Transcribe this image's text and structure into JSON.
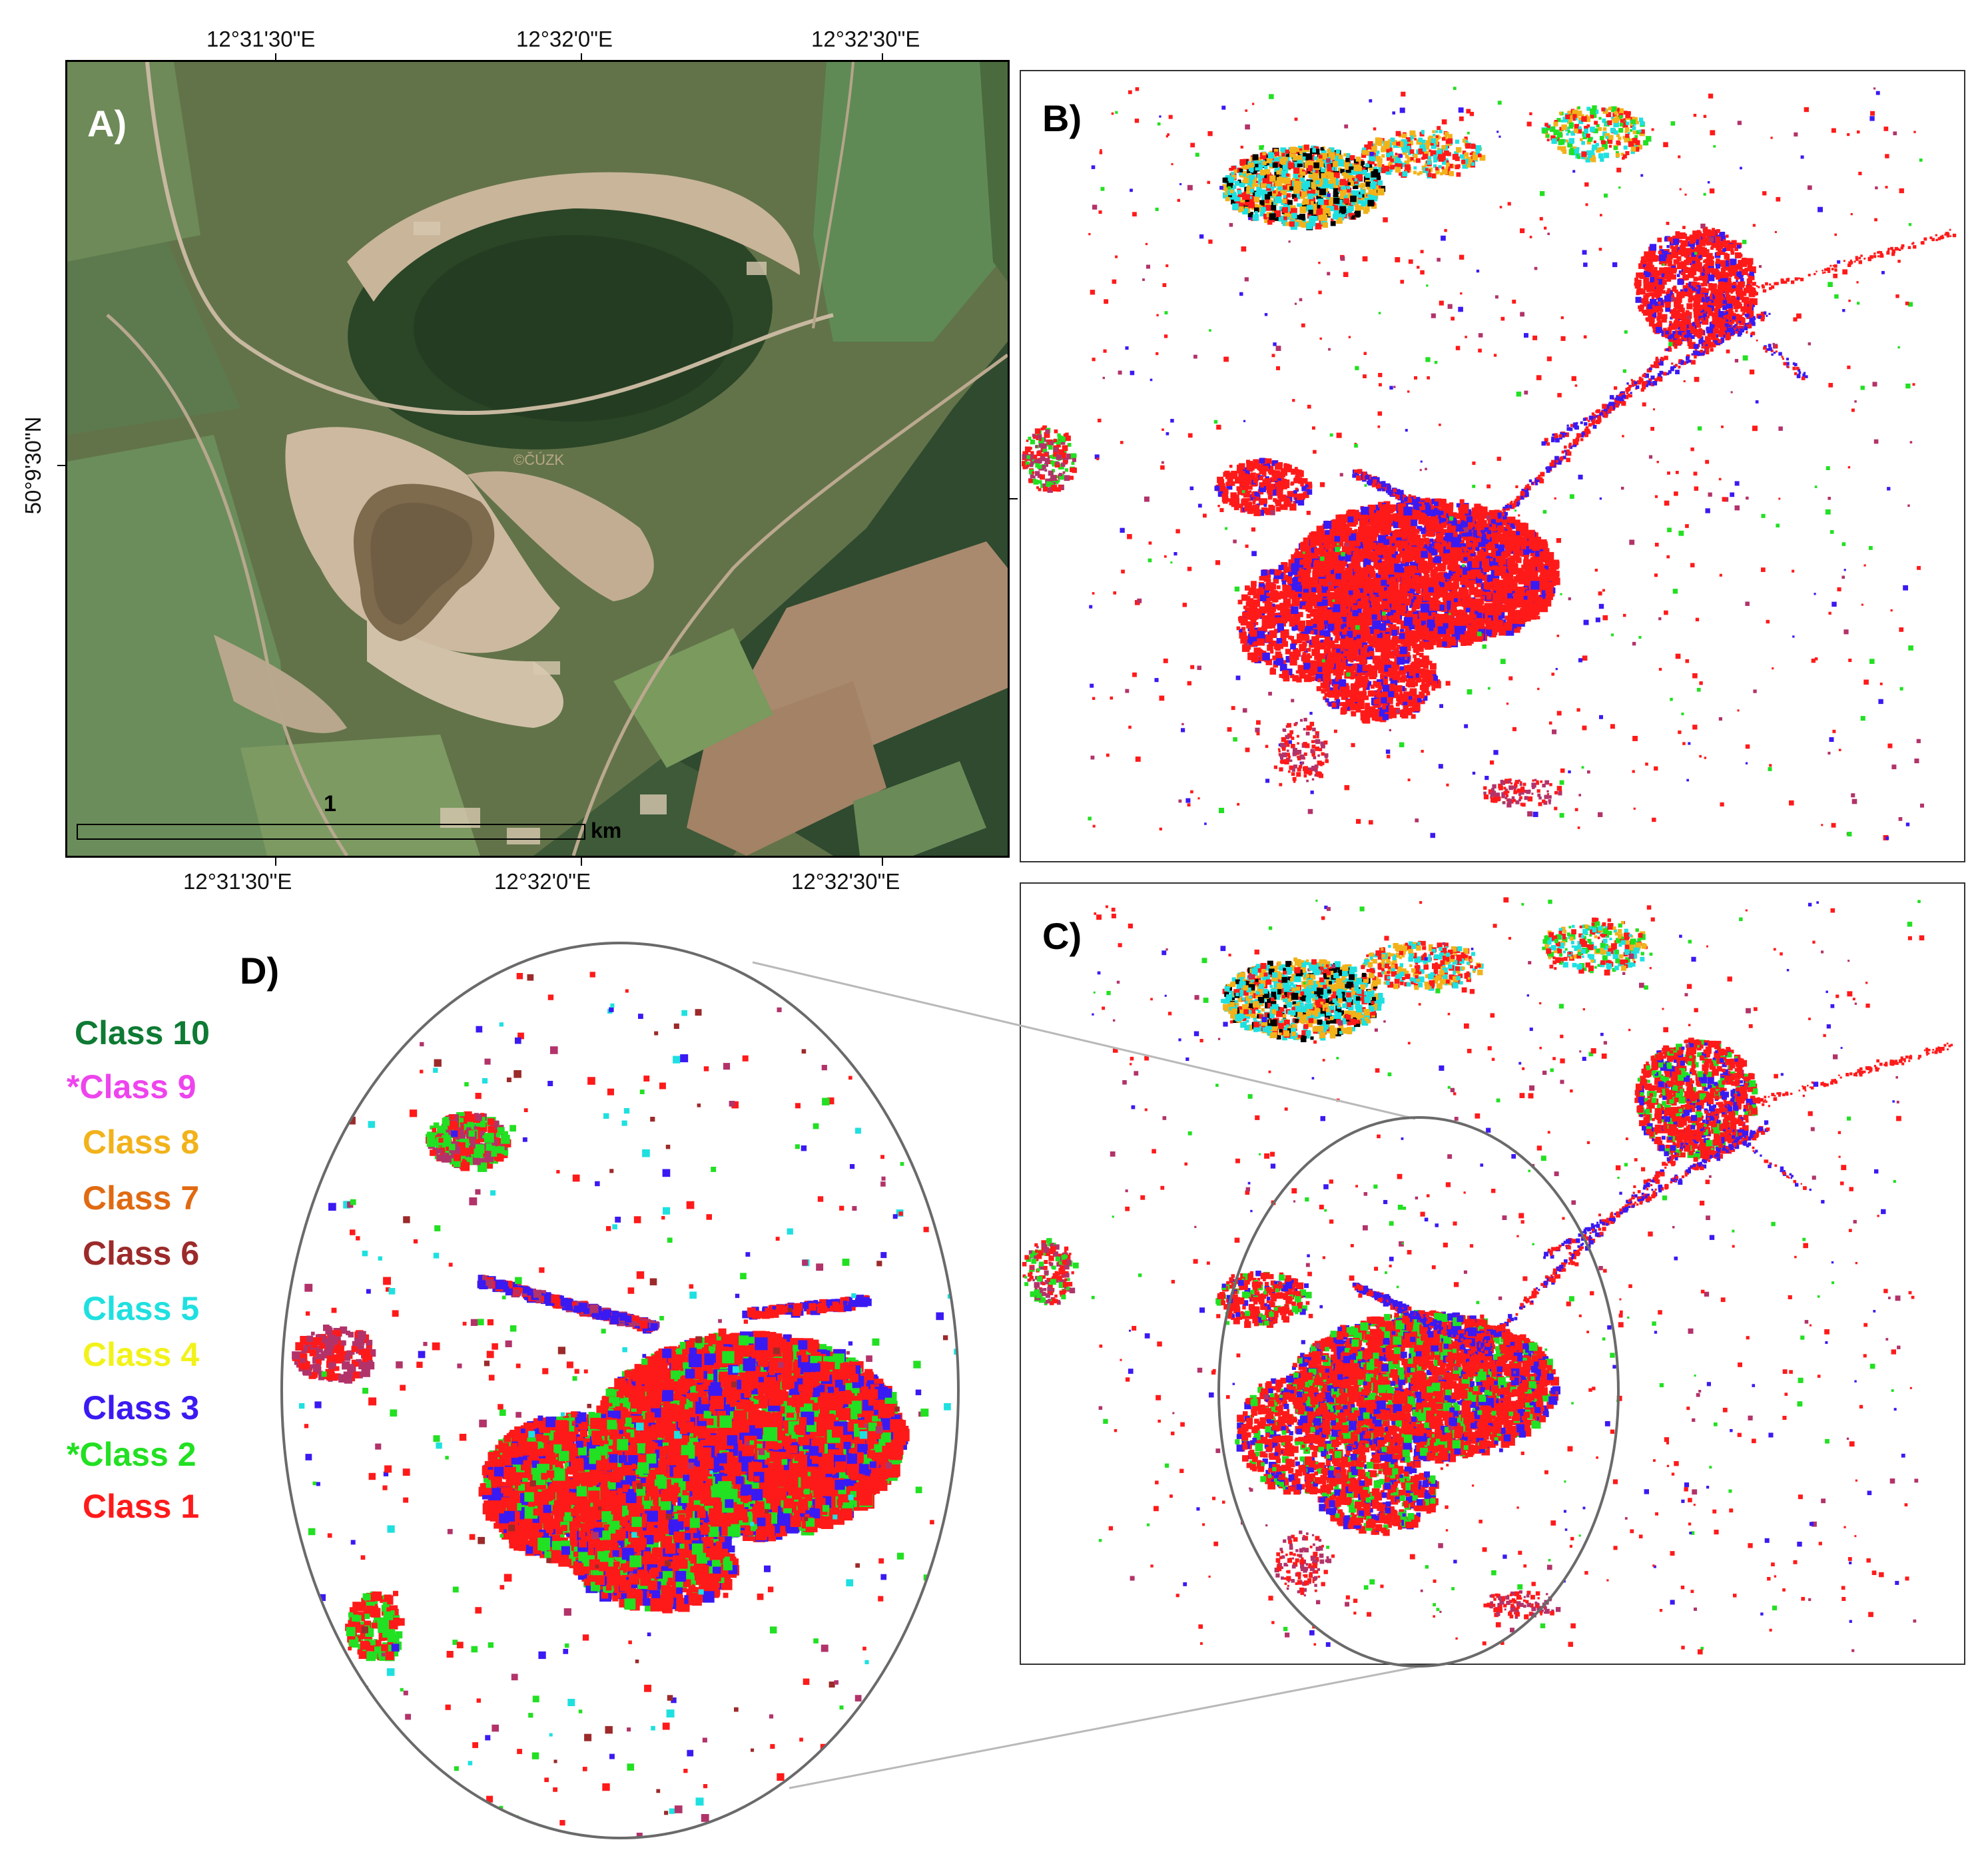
{
  "panels": {
    "a": {
      "label": "A)"
    },
    "b": {
      "label": "B)"
    },
    "c": {
      "label": "C)"
    },
    "d": {
      "label": "D)"
    }
  },
  "coordinates": {
    "top_ticks": [
      "12°31'30\"E",
      "12°32'0\"E",
      "12°32'30\"E"
    ],
    "bottom_ticks": [
      "12°31'30\"E",
      "12°32'0\"E",
      "12°32'30\"E"
    ],
    "left_tick": "50°9'30\"N"
  },
  "scale_bar": {
    "value": "1",
    "unit": "km"
  },
  "watermark": "©ČÚZK",
  "legend": [
    {
      "label": "Class 10",
      "color": "#0e7a33"
    },
    {
      "label": "*Class 9",
      "color": "#ee44ee"
    },
    {
      "label": "Class 8",
      "color": "#f2b21a"
    },
    {
      "label": "Class 7",
      "color": "#e06a12"
    },
    {
      "label": "Class 6",
      "color": "#9c2a2a"
    },
    {
      "label": "Class 5",
      "color": "#1fe0e0"
    },
    {
      "label": "Class 4",
      "color": "#f2f21a"
    },
    {
      "label": "Class 3",
      "color": "#3a1af2"
    },
    {
      "label": "*Class 2",
      "color": "#22e022"
    },
    {
      "label": "Class 1",
      "color": "#ff1a1a"
    }
  ]
}
